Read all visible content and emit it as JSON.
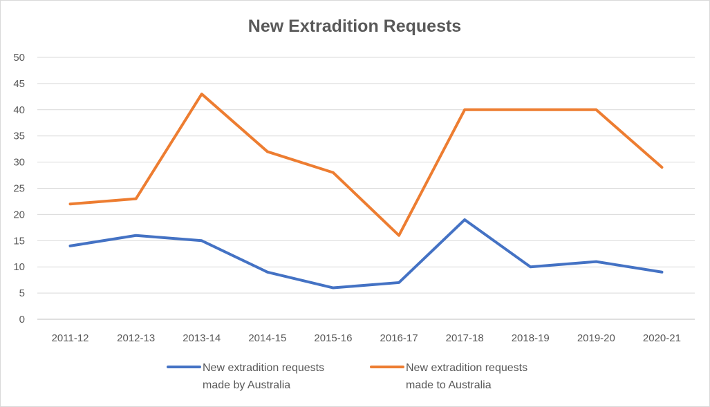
{
  "chart_data": {
    "type": "line",
    "title": "New Extradition Requests",
    "xlabel": "",
    "ylabel": "",
    "categories": [
      "2011-12",
      "2012-13",
      "2013-14",
      "2014-15",
      "2015-16",
      "2016-17",
      "2017-18",
      "2018-19",
      "2019-20",
      "2020-21"
    ],
    "ylim": [
      0,
      50
    ],
    "yticks": [
      0,
      5,
      10,
      15,
      20,
      25,
      30,
      35,
      40,
      45,
      50
    ],
    "grid": true,
    "legend_position": "bottom",
    "series": [
      {
        "name": "New extradition requests made by Australia",
        "name_lines": [
          "New extradition requests",
          "made by Australia"
        ],
        "color": "#4472c4",
        "values": [
          14,
          16,
          15,
          9,
          6,
          7,
          19,
          10,
          11,
          9
        ]
      },
      {
        "name": "New extradition requests made to Australia",
        "name_lines": [
          "New extradition requests",
          "made to Australia"
        ],
        "color": "#ed7d31",
        "values": [
          22,
          23,
          43,
          32,
          28,
          16,
          40,
          40,
          40,
          29
        ]
      }
    ]
  }
}
